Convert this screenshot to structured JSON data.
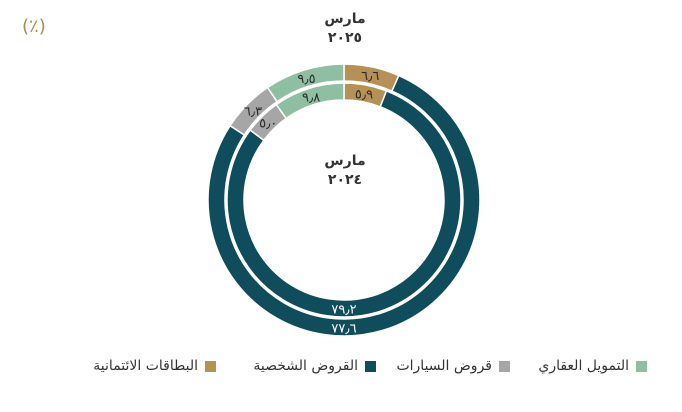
{
  "unit_label": "(٪)",
  "outer_ring_label": {
    "line1": "مارس",
    "line2": "٢٠٢٥"
  },
  "inner_ring_label": {
    "line1": "مارس",
    "line2": "٢٠٢٤"
  },
  "chart_data": {
    "type": "pie",
    "subtype": "double-ring donut",
    "categories": [
      "البطاقات الائتمانية",
      "القروض الشخصية",
      "قروض السيارات",
      "التمويل العقاري"
    ],
    "colors": [
      "#b59155",
      "#0f4c5c",
      "#a6a6a6",
      "#8fbfa3"
    ],
    "series": [
      {
        "name": "مارس ٢٠٢٥",
        "ring": "outer",
        "values": [
          6.6,
          77.6,
          6.3,
          9.5
        ],
        "value_labels": [
          "٦٫٦",
          "٧٧٫٦",
          "٦٫٣",
          "٩٫٥"
        ]
      },
      {
        "name": "مارس ٢٠٢٤",
        "ring": "inner",
        "values": [
          5.9,
          79.2,
          5.0,
          9.8
        ],
        "value_labels": [
          "٥٫٩",
          "٧٩٫٢",
          "٥٫٠",
          "٩٫٨"
        ]
      }
    ],
    "legend_position": "bottom",
    "legend": [
      {
        "label": "التمويل العقاري",
        "color": "#8fbfa3"
      },
      {
        "label": "قروض السيارات",
        "color": "#a6a6a6"
      },
      {
        "label": "القروض الشخصية",
        "color": "#0f4c5c"
      },
      {
        "label": "البطاقات الائتمانية",
        "color": "#b59155"
      }
    ]
  }
}
